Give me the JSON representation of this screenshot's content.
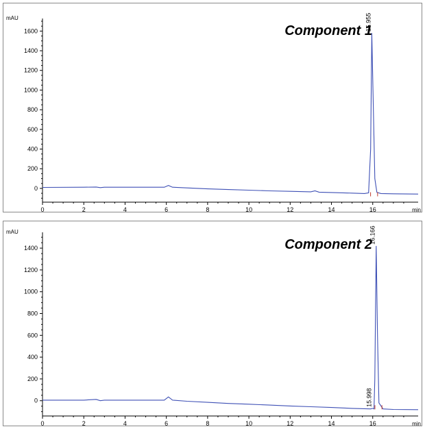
{
  "chart_data": [
    {
      "type": "line",
      "title": "Component 1",
      "xlabel": "min",
      "ylabel": "mAU",
      "xlim": [
        0,
        18.2
      ],
      "ylim": [
        -140,
        1700
      ],
      "x_ticks": [
        0,
        2,
        4,
        6,
        8,
        10,
        12,
        14,
        16
      ],
      "x_tick_labels": [
        "0",
        "2",
        "4",
        "6",
        "8",
        "10",
        "12",
        "14",
        "16"
      ],
      "y_ticks": [
        0,
        200,
        400,
        600,
        800,
        1000,
        1200,
        1400,
        1600
      ],
      "y_tick_labels": [
        "0",
        "200",
        "400",
        "600",
        "800",
        "1000",
        "1200",
        "1400",
        "1600"
      ],
      "grid": false,
      "series": [
        {
          "color": "#3d4fb5",
          "x": [
            0,
            2,
            2.6,
            2.8,
            3,
            4,
            5.9,
            6.1,
            6.3,
            7,
            8,
            9,
            10,
            11,
            12,
            13,
            13.2,
            13.4,
            14,
            15,
            15.6,
            15.8,
            15.9,
            15.955,
            16.02,
            16.1,
            16.2,
            16.4,
            17,
            18.2
          ],
          "y": [
            10,
            12,
            14,
            8,
            12,
            12,
            12,
            30,
            12,
            5,
            -5,
            -12,
            -18,
            -25,
            -30,
            -35,
            -25,
            -38,
            -42,
            -48,
            -52,
            -45,
            400,
            1580,
            900,
            100,
            -40,
            -52,
            -55,
            -58
          ]
        }
      ],
      "peaks": [
        {
          "label": "15.955",
          "x": 15.955,
          "y": 1580
        }
      ]
    },
    {
      "type": "line",
      "title": "Component 2",
      "xlabel": "min",
      "ylabel": "mAU",
      "xlim": [
        0,
        18.2
      ],
      "ylim": [
        -140,
        1520
      ],
      "x_ticks": [
        0,
        2,
        4,
        6,
        8,
        10,
        12,
        14,
        16
      ],
      "x_tick_labels": [
        "0",
        "2",
        "4",
        "6",
        "8",
        "10",
        "12",
        "14",
        "16"
      ],
      "y_ticks": [
        0,
        200,
        400,
        600,
        800,
        1000,
        1200,
        1400
      ],
      "y_tick_labels": [
        "0",
        "200",
        "400",
        "600",
        "800",
        "1000",
        "1200",
        "1400"
      ],
      "grid": false,
      "series": [
        {
          "color": "#3d4fb5",
          "x": [
            0,
            2,
            2.6,
            2.8,
            3,
            4,
            5.9,
            6.1,
            6.3,
            7,
            8,
            9,
            10,
            11,
            12,
            13,
            14,
            15,
            15.9,
            15.998,
            16.06,
            16.1,
            16.166,
            16.23,
            16.3,
            16.5,
            17,
            18.2
          ],
          "y": [
            5,
            5,
            12,
            0,
            5,
            5,
            5,
            35,
            5,
            -5,
            -15,
            -25,
            -32,
            -40,
            -48,
            -55,
            -62,
            -70,
            -75,
            -70,
            -75,
            200,
            1420,
            600,
            -20,
            -75,
            -80,
            -82
          ]
        }
      ],
      "peaks": [
        {
          "label": "15.998",
          "x": 15.998,
          "y": -70
        },
        {
          "label": "16.166",
          "x": 16.166,
          "y": 1420
        }
      ]
    }
  ]
}
